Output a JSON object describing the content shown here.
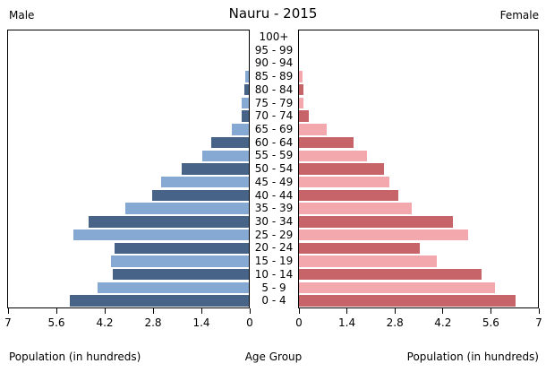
{
  "title": "Nauru - 2015",
  "header_left": "Male",
  "header_right": "Female",
  "footer": {
    "xlabel_left": "Population (in hundreds)",
    "xlabel_center": "Age Group",
    "xlabel_right": "Population (in hundreds)"
  },
  "axis": {
    "male_tick_labels": [
      "7",
      "5.6",
      "4.2",
      "2.8",
      "1.4",
      "0"
    ],
    "female_tick_labels": [
      "0",
      "1.4",
      "2.8",
      "4.2",
      "5.6",
      "7"
    ],
    "max": 7
  },
  "colors": {
    "male_dark": "#476387",
    "male_light": "#85a9d2",
    "female_dark": "#c6646a",
    "female_light": "#f3a8ad",
    "axis_border": "#000000",
    "background": "#ffffff"
  },
  "chart_data": {
    "type": "bar",
    "subtype": "population-pyramid",
    "title": "Nauru - 2015",
    "xlabel": "Population (in hundreds)",
    "ylabel": "Age Group",
    "unit": "hundreds",
    "xlim": [
      0,
      7
    ],
    "grid": false,
    "legend_position": "none",
    "categories_top_to_bottom": [
      "100+",
      "95 - 99",
      "90 - 94",
      "85 - 89",
      "80 - 84",
      "75 - 79",
      "70 - 74",
      "65 - 69",
      "60 - 64",
      "55 - 59",
      "50 - 54",
      "45 - 49",
      "40 - 44",
      "35 - 39",
      "30 - 34",
      "25 - 29",
      "20 - 24",
      "15 - 19",
      "10 - 14",
      "5 - 9",
      "0 - 4"
    ],
    "series": [
      {
        "name": "Male",
        "side": "left",
        "values": [
          0,
          0,
          0,
          0.1,
          0.13,
          0.22,
          0.2,
          0.5,
          1.1,
          1.35,
          1.95,
          2.55,
          2.8,
          3.6,
          4.65,
          5.1,
          3.9,
          4.0,
          3.95,
          4.4,
          5.2
        ]
      },
      {
        "name": "Female",
        "side": "right",
        "values": [
          0,
          0,
          0,
          0.1,
          0.14,
          0.14,
          0.3,
          0.8,
          1.6,
          2.0,
          2.5,
          2.65,
          2.9,
          3.3,
          4.5,
          4.95,
          3.55,
          4.05,
          5.35,
          5.75,
          6.35
        ]
      }
    ]
  }
}
